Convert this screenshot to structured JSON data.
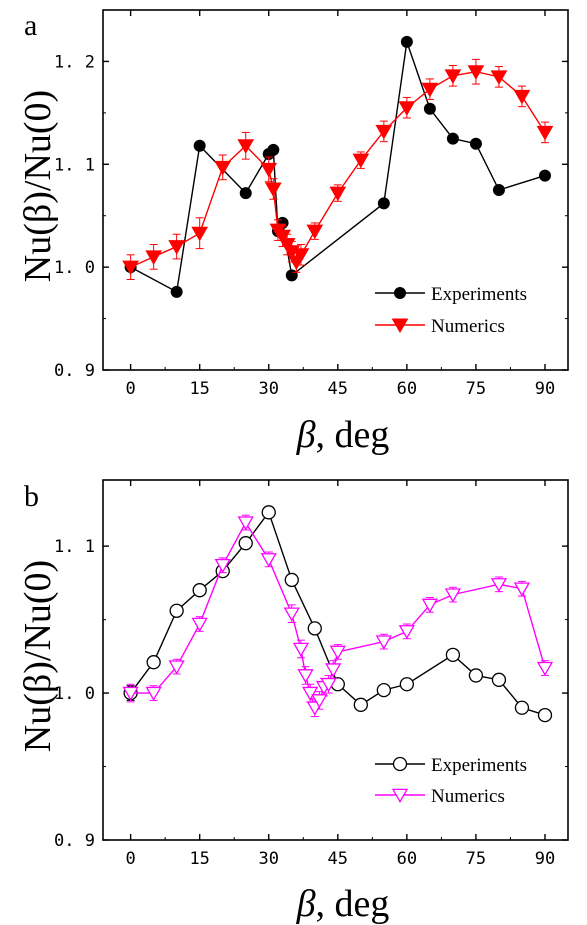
{
  "chart_data": [
    {
      "panel": "a",
      "type": "line",
      "xlabel": "β, deg",
      "xlabel_symbol": "β",
      "xlabel_rest": ", deg",
      "ylabel": "Nu(β)/Nu(0)",
      "xlim": [
        -6,
        95
      ],
      "ylim": [
        0.9,
        1.25
      ],
      "xticks": [
        0,
        15,
        30,
        45,
        60,
        75,
        90
      ],
      "yticks": [
        0.9,
        1.0,
        1.1,
        1.2
      ],
      "ytick_labels": [
        "0. 9",
        "1. 0",
        "1. 1",
        "1. 2"
      ],
      "legend_position": "lower-right",
      "series": [
        {
          "name": "Experiments",
          "color": "#000000",
          "marker": "filled-circle",
          "x": [
            0,
            10,
            15,
            25,
            30,
            31,
            32,
            33,
            35,
            55,
            60,
            65,
            70,
            75,
            80,
            90
          ],
          "y": [
            1.0,
            0.976,
            1.118,
            1.072,
            1.11,
            1.114,
            1.035,
            1.043,
            0.992,
            1.062,
            1.219,
            1.154,
            1.125,
            1.12,
            1.075,
            1.089
          ]
        },
        {
          "name": "Numerics",
          "color": "#ff0000",
          "marker": "filled-triangle-down",
          "x": [
            0,
            5,
            10,
            15,
            20,
            25,
            30,
            31,
            32,
            33,
            34,
            35,
            36,
            37,
            40,
            45,
            50,
            55,
            60,
            65,
            70,
            75,
            80,
            85,
            90
          ],
          "y": [
            1.0,
            1.01,
            1.02,
            1.033,
            1.097,
            1.118,
            1.095,
            1.076,
            1.036,
            1.03,
            1.022,
            1.015,
            1.005,
            1.012,
            1.035,
            1.072,
            1.104,
            1.132,
            1.155,
            1.173,
            1.186,
            1.19,
            1.185,
            1.166,
            1.131
          ],
          "error": [
            0.012,
            0.012,
            0.012,
            0.015,
            0.012,
            0.013,
            0.012,
            0.01,
            0.01,
            0.01,
            0.01,
            0.01,
            0.01,
            0.01,
            0.008,
            0.008,
            0.008,
            0.01,
            0.01,
            0.01,
            0.01,
            0.012,
            0.01,
            0.01,
            0.01
          ]
        }
      ]
    },
    {
      "panel": "b",
      "type": "line",
      "xlabel": "β, deg",
      "xlabel_symbol": "β",
      "xlabel_rest": ", deg",
      "ylabel": "Nu(β)/Nu(0)",
      "xlim": [
        -6,
        95
      ],
      "ylim": [
        0.9,
        1.145
      ],
      "xticks": [
        0,
        15,
        30,
        45,
        60,
        75,
        90
      ],
      "yticks": [
        0.9,
        1.0,
        1.1
      ],
      "ytick_labels": [
        "0. 9",
        "1. 0",
        "1. 1"
      ],
      "legend_position": "lower-right",
      "series": [
        {
          "name": "Experiments",
          "color": "#000000",
          "marker": "open-circle",
          "x": [
            0,
            5,
            10,
            15,
            20,
            25,
            30,
            35,
            40,
            45,
            50,
            55,
            60,
            70,
            75,
            80,
            85,
            90
          ],
          "y": [
            1.0,
            1.021,
            1.056,
            1.07,
            1.083,
            1.102,
            1.123,
            1.077,
            1.044,
            1.006,
            0.992,
            1.002,
            1.006,
            1.026,
            1.012,
            1.009,
            0.99,
            0.985
          ],
          "error": [
            0.005,
            0,
            0,
            0,
            0,
            0,
            0,
            0,
            0,
            0,
            0,
            0,
            0,
            0,
            0,
            0,
            0,
            0
          ]
        },
        {
          "name": "Numerics",
          "color": "#ff00ff",
          "marker": "open-triangle-down",
          "x": [
            0,
            5,
            10,
            15,
            20,
            25,
            30,
            35,
            37,
            38,
            39,
            40,
            41,
            42,
            43,
            44,
            45,
            55,
            60,
            65,
            70,
            80,
            85,
            90
          ],
          "y": [
            1.0,
            1.0,
            1.018,
            1.047,
            1.087,
            1.116,
            1.091,
            1.054,
            1.03,
            1.012,
            1.0,
            0.99,
            0.995,
            1.004,
            1.006,
            1.016,
            1.028,
            1.035,
            1.042,
            1.06,
            1.067,
            1.074,
            1.071,
            1.017
          ],
          "error": [
            0.006,
            0.005,
            0.005,
            0.005,
            0.005,
            0.005,
            0.005,
            0.006,
            0.006,
            0.006,
            0.006,
            0.006,
            0.006,
            0.006,
            0.006,
            0.006,
            0.005,
            0.005,
            0.005,
            0.005,
            0.005,
            0.005,
            0.005,
            0.005
          ]
        }
      ]
    }
  ]
}
